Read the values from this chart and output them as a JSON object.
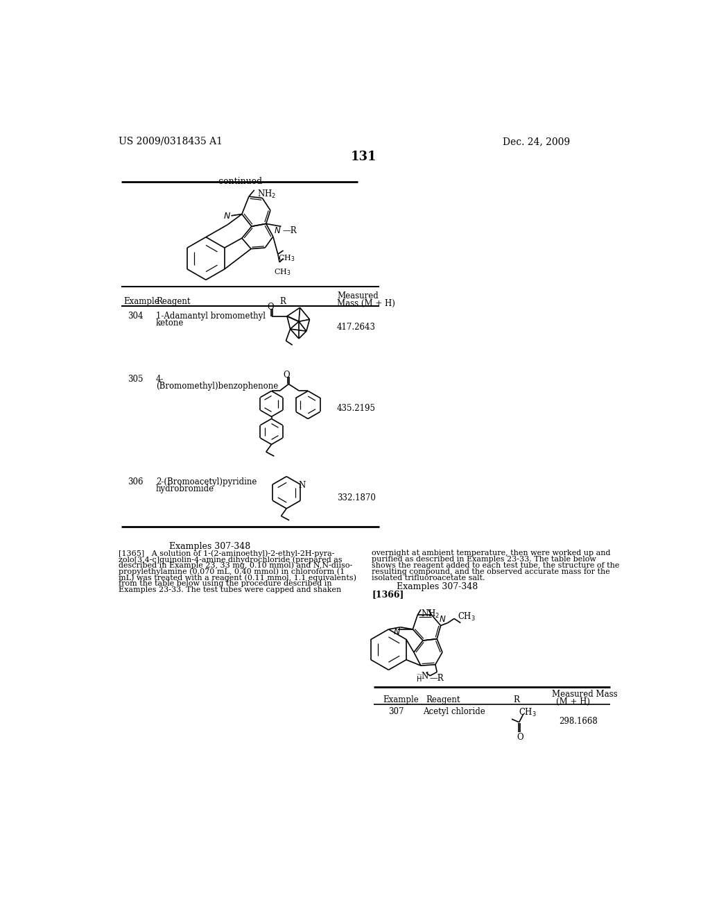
{
  "page_number": "131",
  "patent_number": "US 2009/0318435 A1",
  "patent_date": "Dec. 24, 2009",
  "continued_label": "-continued",
  "table_rows": [
    {
      "example": "304",
      "reagent1": "1-Adamantyl bromomethyl",
      "reagent2": "ketone",
      "mass": "417.2643"
    },
    {
      "example": "305",
      "reagent1": "4-",
      "reagent2": "(Bromomethyl)benzophenone",
      "mass": "435.2195"
    },
    {
      "example": "306",
      "reagent1": "2-(Bromoacetyl)pyridine",
      "reagent2": "hydrobromide",
      "mass": "332.1870"
    }
  ],
  "texts_left": [
    "[1365]   A solution of 1-(2-aminoethyl)-2-ethyl-2H-pyra-",
    "zolo[3,4-c]quinolin-4-amine dihydrochloride (prepared as",
    "described in Example 23, 33 mg, 0.10 mmol) and N,N-diiso-",
    "propylethylamine (0.070 mL, 0.40 mmol) in chloroform (1",
    "mL) was treated with a reagent (0.11 mmol, 1.1 equivalents)",
    "from the table below using the procedure described in",
    "Examples 23-33. The test tubes were capped and shaken"
  ],
  "texts_right": [
    "overnight at ambient temperature, then were worked up and",
    "purified as described in Examples 23-33. The table below",
    "shows the reagent added to each test tube, the structure of the",
    "resulting compound, and the observed accurate mass for the",
    "isolated trifluoroacetate salt."
  ],
  "bottom_row": {
    "example": "307",
    "reagent": "Acetyl chloride",
    "mass": "298.1668"
  }
}
